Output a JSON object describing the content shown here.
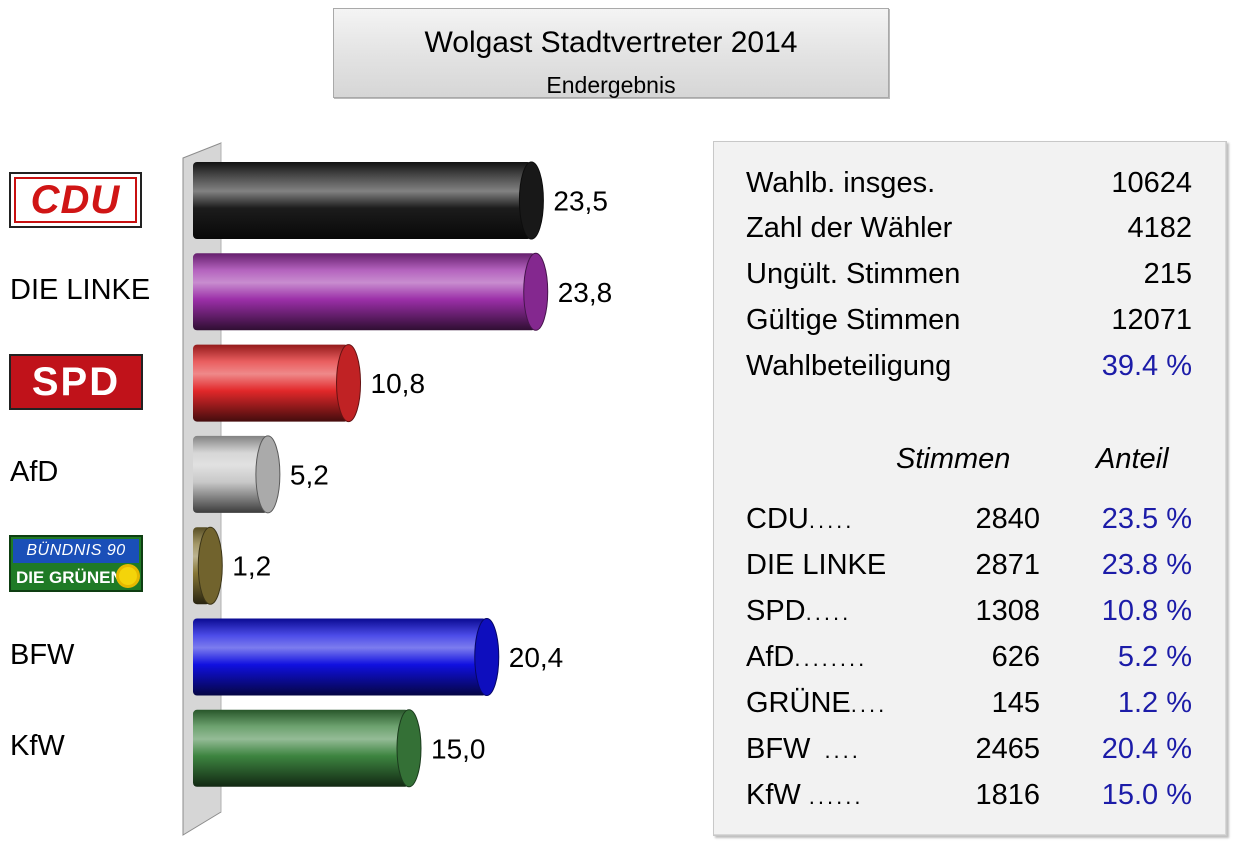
{
  "title": "Wolgast Stadtvertreter 2014",
  "subtitle": "Endergebnis",
  "chart_data": {
    "type": "bar",
    "orientation": "horizontal",
    "categories": [
      "CDU",
      "DIE LINKE",
      "SPD",
      "AfD",
      "DIE GRÜNEN",
      "BFW",
      "KfW"
    ],
    "values": [
      23.5,
      23.8,
      10.8,
      5.2,
      1.2,
      20.4,
      15.0
    ],
    "value_labels": [
      "23,5",
      "23,8",
      "10,8",
      "5,2",
      "1,2",
      "20,4",
      "15,0"
    ],
    "colors": [
      "#1c1c1c",
      "#9b2fa8",
      "#e2282a",
      "#c8c8c8",
      "#857535",
      "#1010e0",
      "#3d8440"
    ],
    "xlim": [
      0,
      25
    ],
    "grid": false,
    "legend": "none"
  },
  "party_labels": {
    "cdu_logo": "CDU",
    "linke": "DIE LINKE",
    "spd_logo": "SPD",
    "afd": "AfD",
    "gruene_logo_top": "BÜNDNIS 90",
    "gruene_logo_bottom": "DIE GRÜNEN",
    "bfw": "BFW",
    "kfw": "KfW"
  },
  "summary": [
    {
      "label": "Wahlb. insges.",
      "value": "10624"
    },
    {
      "label": "Zahl der Wähler",
      "value": "4182"
    },
    {
      "label": "Ungült. Stimmen",
      "value": "215"
    },
    {
      "label": "Gültige Stimmen",
      "value": "12071"
    },
    {
      "label": "Wahlbeteiligung",
      "value": "39.4 %"
    }
  ],
  "results_header": {
    "votes": "Stimmen",
    "share": "Anteil"
  },
  "results": [
    {
      "party": "CDU",
      "dots": ".....",
      "votes": "2840",
      "share": "23.5 %"
    },
    {
      "party": "DIE LINKE",
      "dots": "",
      "votes": "2871",
      "share": "23.8 %"
    },
    {
      "party": "SPD",
      "dots": ".....",
      "votes": "1308",
      "share": "10.8 %"
    },
    {
      "party": "AfD",
      "dots": "........",
      "votes": "626",
      "share": "5.2 %"
    },
    {
      "party": "GRÜNE",
      "dots": "....",
      "votes": "145",
      "share": "1.2 %"
    },
    {
      "party": "BFW",
      "dots": "....",
      "votes": "2465",
      "share": "20.4 %"
    },
    {
      "party": "KfW",
      "dots": "......",
      "votes": "1816",
      "share": "15.0 %"
    }
  ]
}
